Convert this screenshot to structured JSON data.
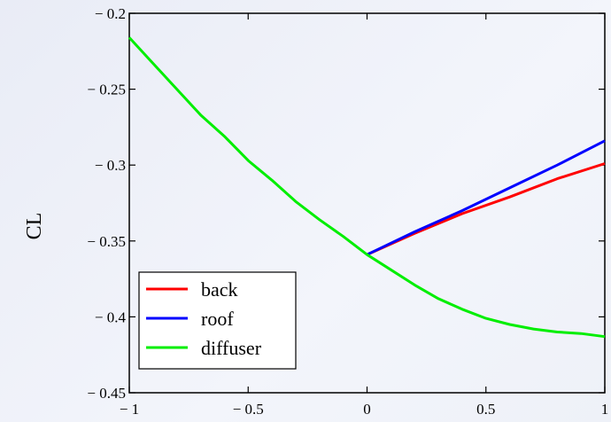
{
  "chart_data": {
    "type": "line",
    "title": "",
    "xlabel": "",
    "ylabel": "CL",
    "xlim": [
      -1,
      1
    ],
    "ylim": [
      -0.45,
      -0.2
    ],
    "x_ticks": [
      -1,
      -0.5,
      0,
      0.5,
      1
    ],
    "x_tick_labels": [
      "− 1",
      "− 0.5",
      "0",
      "0.5",
      "1"
    ],
    "y_ticks": [
      -0.2,
      -0.25,
      -0.3,
      -0.35,
      -0.4,
      -0.45
    ],
    "y_tick_labels": [
      "− 0.2",
      "− 0.25",
      "− 0.3",
      "− 0.35",
      "− 0.4",
      "− 0.45"
    ],
    "grid": false,
    "legend_position": "bottom-left",
    "series": [
      {
        "name": "back",
        "color": "#ff0000",
        "x": [
          0,
          0.2,
          0.4,
          0.6,
          0.8,
          1.0
        ],
        "y": [
          -0.359,
          -0.345,
          -0.332,
          -0.321,
          -0.309,
          -0.299
        ]
      },
      {
        "name": "roof",
        "color": "#0000ff",
        "x": [
          0,
          0.2,
          0.4,
          0.6,
          0.8,
          1.0
        ],
        "y": [
          -0.359,
          -0.344,
          -0.33,
          -0.315,
          -0.3,
          -0.284
        ]
      },
      {
        "name": "diffuser",
        "color": "#00ee00",
        "x": [
          -1,
          -0.9,
          -0.8,
          -0.7,
          -0.6,
          -0.5,
          -0.4,
          -0.3,
          -0.2,
          -0.1,
          0,
          0.1,
          0.2,
          0.3,
          0.4,
          0.5,
          0.6,
          0.7,
          0.8,
          0.9,
          1.0
        ],
        "y": [
          -0.216,
          -0.233,
          -0.25,
          -0.267,
          -0.281,
          -0.297,
          -0.31,
          -0.324,
          -0.336,
          -0.347,
          -0.359,
          -0.369,
          -0.379,
          -0.388,
          -0.395,
          -0.401,
          -0.405,
          -0.408,
          -0.41,
          -0.411,
          -0.413
        ]
      }
    ]
  }
}
